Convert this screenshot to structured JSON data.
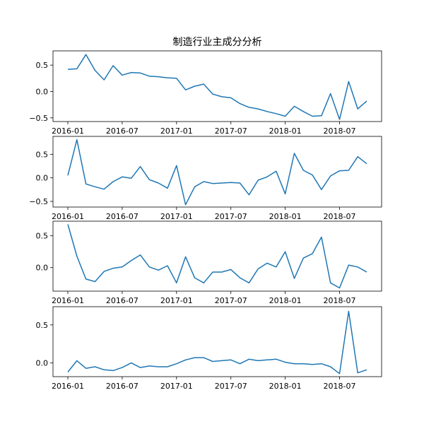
{
  "chart_data": {
    "type": "line",
    "title": "制造行业主成分分析",
    "x": [
      "2016-01",
      "2016-02",
      "2016-03",
      "2016-04",
      "2016-05",
      "2016-06",
      "2016-07",
      "2016-08",
      "2016-09",
      "2016-10",
      "2016-11",
      "2016-12",
      "2017-01",
      "2017-02",
      "2017-03",
      "2017-04",
      "2017-05",
      "2017-06",
      "2017-07",
      "2017-08",
      "2017-09",
      "2017-10",
      "2017-11",
      "2017-12",
      "2018-01",
      "2018-02",
      "2018-03",
      "2018-04",
      "2018-05",
      "2018-06",
      "2018-07",
      "2018-08",
      "2018-09",
      "2018-10"
    ],
    "x_tick_labels": [
      "2016-01",
      "2016-07",
      "2017-01",
      "2017-07",
      "2018-01",
      "2018-07"
    ],
    "grid": false,
    "panels": [
      {
        "ylim": [
          -0.57,
          0.77
        ],
        "yticks": [
          0.5,
          0.0,
          -0.5
        ],
        "ytick_labels": [
          "0.5",
          "0.0",
          "−0.5"
        ],
        "values": [
          0.42,
          0.43,
          0.7,
          0.4,
          0.22,
          0.49,
          0.31,
          0.36,
          0.35,
          0.29,
          0.28,
          0.26,
          0.25,
          0.03,
          0.1,
          0.14,
          -0.05,
          -0.1,
          -0.12,
          -0.23,
          -0.3,
          -0.33,
          -0.38,
          -0.42,
          -0.47,
          -0.28,
          -0.38,
          -0.47,
          -0.46,
          -0.04,
          -0.53,
          0.19,
          -0.33,
          -0.18
        ]
      },
      {
        "ylim": [
          -0.62,
          0.88
        ],
        "yticks": [
          0.5,
          0.0,
          -0.5
        ],
        "ytick_labels": [
          "0.5",
          "0.0",
          "−0.5"
        ],
        "values": [
          0.05,
          0.81,
          -0.13,
          -0.19,
          -0.24,
          -0.08,
          0.02,
          -0.01,
          0.24,
          -0.04,
          -0.11,
          -0.22,
          0.26,
          -0.57,
          -0.19,
          -0.08,
          -0.12,
          -0.11,
          -0.1,
          -0.11,
          -0.36,
          -0.05,
          0.02,
          0.14,
          -0.34,
          0.52,
          0.16,
          0.06,
          -0.25,
          0.04,
          0.15,
          0.16,
          0.45,
          0.3
        ]
      },
      {
        "ylim": [
          -0.37,
          0.73
        ],
        "yticks": [
          0.5,
          0.0
        ],
        "ytick_labels": [
          "0.5",
          "0.0"
        ],
        "values": [
          0.68,
          0.18,
          -0.18,
          -0.22,
          -0.06,
          -0.01,
          0.01,
          0.11,
          0.2,
          0.01,
          -0.04,
          0.03,
          -0.24,
          0.17,
          -0.16,
          -0.24,
          -0.07,
          -0.07,
          -0.03,
          -0.16,
          -0.24,
          -0.02,
          0.07,
          0.01,
          0.25,
          -0.17,
          0.15,
          0.22,
          0.48,
          -0.24,
          -0.32,
          0.04,
          0.01,
          -0.07
        ]
      },
      {
        "ylim": [
          -0.18,
          0.74
        ],
        "yticks": [
          0.5,
          0.0
        ],
        "ytick_labels": [
          "0.5",
          "0.0"
        ],
        "values": [
          -0.12,
          0.03,
          -0.07,
          -0.05,
          -0.09,
          -0.1,
          -0.06,
          0.0,
          -0.06,
          -0.04,
          -0.05,
          -0.05,
          -0.01,
          0.04,
          0.07,
          0.07,
          0.02,
          0.03,
          0.04,
          -0.01,
          0.05,
          0.03,
          0.04,
          0.05,
          0.01,
          -0.01,
          -0.01,
          -0.02,
          -0.01,
          -0.05,
          -0.14,
          0.68,
          -0.13,
          -0.09
        ]
      }
    ]
  },
  "colors": {
    "series": "#1f77b4",
    "axes": "#000000",
    "background": "#ffffff"
  }
}
